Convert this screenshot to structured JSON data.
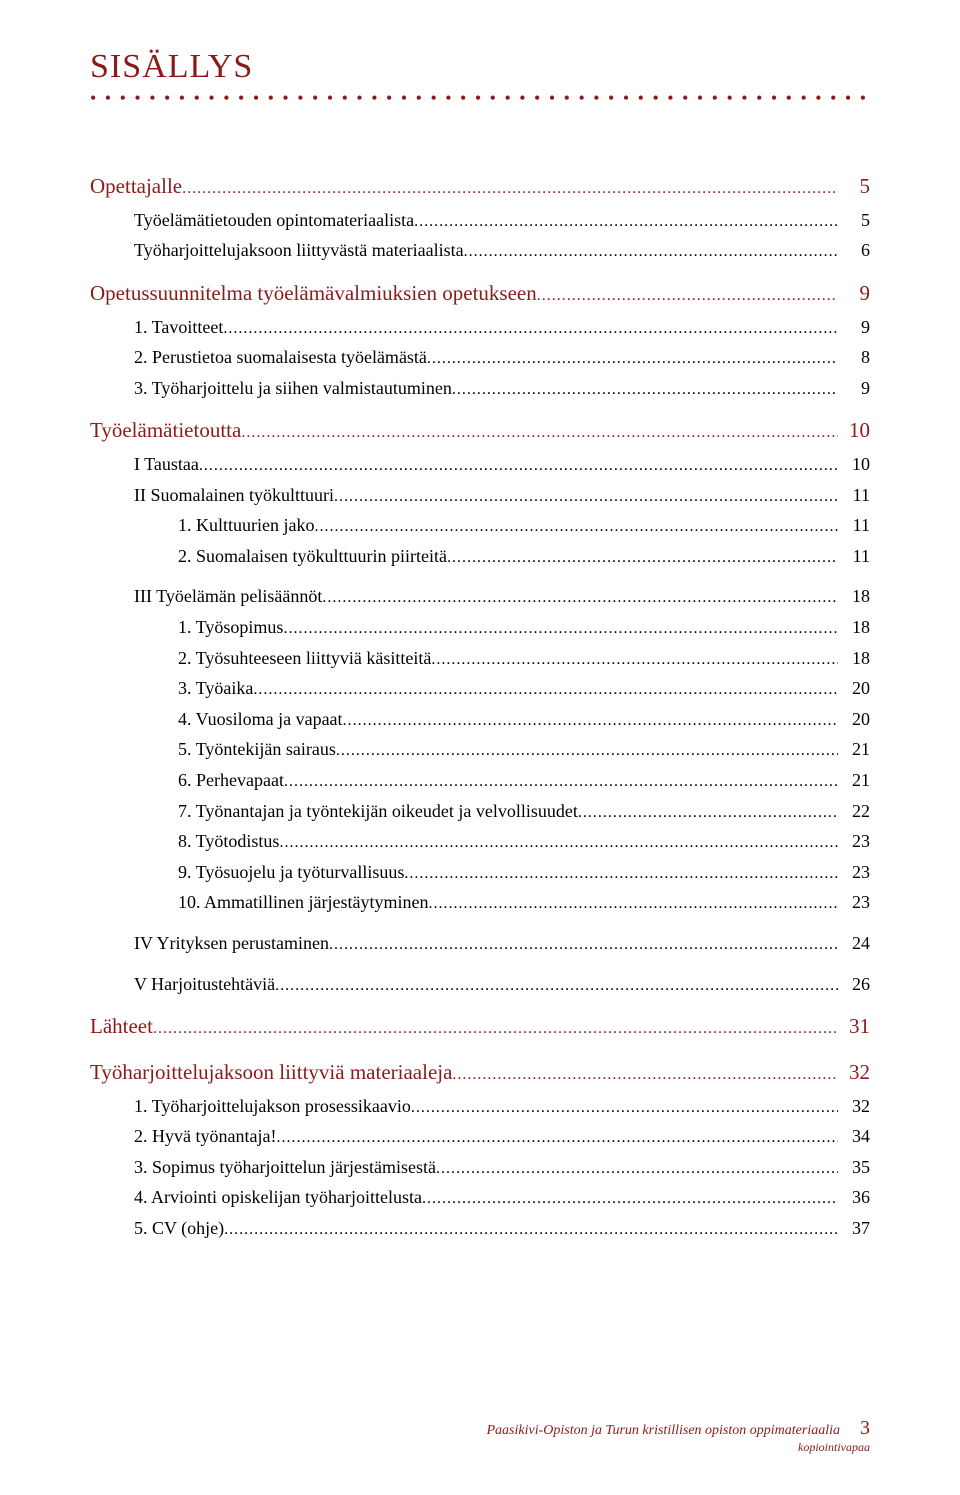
{
  "title": "SISÄLLYS",
  "colors": {
    "accent": "#8b1a1a",
    "text": "#000000",
    "bg": "#ffffff"
  },
  "toc": [
    {
      "level": 1,
      "indent": 0,
      "label": "Opettajalle",
      "page": "5",
      "before": "md"
    },
    {
      "level": 2,
      "indent": 1,
      "label": "Työelämätietouden opintomateriaalista",
      "page": "5"
    },
    {
      "level": 2,
      "indent": 1,
      "label": "Työharjoittelujaksoon liittyvästä materiaalista",
      "page": "6"
    },
    {
      "level": 1,
      "indent": 0,
      "label": "Opetussuunnitelma työelämävalmiuksien opetukseen",
      "page": "9",
      "before": "sm"
    },
    {
      "level": 2,
      "indent": 1,
      "label": "1. Tavoitteet",
      "page": "9"
    },
    {
      "level": 2,
      "indent": 1,
      "label": "2. Perustietoa suomalaisesta työelämästä",
      "page": "8"
    },
    {
      "level": 2,
      "indent": 1,
      "label": "3. Työharjoittelu ja siihen valmistautuminen",
      "page": "9"
    },
    {
      "level": 1,
      "indent": 0,
      "label": "Työelämätietoutta",
      "page": "10",
      "before": "sm"
    },
    {
      "level": 2,
      "indent": 1,
      "label": "I Taustaa",
      "page": "10"
    },
    {
      "level": 2,
      "indent": 1,
      "label": "II Suomalainen työkulttuuri",
      "page": "11"
    },
    {
      "level": 2,
      "indent": 2,
      "label": "1. Kulttuurien jako",
      "page": "11"
    },
    {
      "level": 2,
      "indent": 2,
      "label": "2. Suomalaisen työkulttuurin piirteitä",
      "page": "11"
    },
    {
      "level": 2,
      "indent": 1,
      "label": "III Työelämän pelisäännöt",
      "page": "18",
      "before": "sm"
    },
    {
      "level": 2,
      "indent": 2,
      "label": "1. Työsopimus",
      "page": "18"
    },
    {
      "level": 2,
      "indent": 2,
      "label": "2. Työsuhteeseen liittyviä käsitteitä",
      "page": "18"
    },
    {
      "level": 2,
      "indent": 2,
      "label": "3. Työaika",
      "page": "20"
    },
    {
      "level": 2,
      "indent": 2,
      "label": "4. Vuosiloma ja vapaat",
      "page": "20"
    },
    {
      "level": 2,
      "indent": 2,
      "label": "5. Työntekijän sairaus",
      "page": "21"
    },
    {
      "level": 2,
      "indent": 2,
      "label": "6. Perhevapaat",
      "page": "21"
    },
    {
      "level": 2,
      "indent": 2,
      "label": "7. Työnantajan ja työntekijän oikeudet ja velvollisuudet",
      "page": "22"
    },
    {
      "level": 2,
      "indent": 2,
      "label": "8. Työtodistus",
      "page": "23"
    },
    {
      "level": 2,
      "indent": 2,
      "label": "9. Työsuojelu ja työturvallisuus",
      "page": "23"
    },
    {
      "level": 2,
      "indent": 2,
      "label": "10. Ammatillinen järjestäytyminen",
      "page": "23"
    },
    {
      "level": 2,
      "indent": 1,
      "label": "IV Yrityksen perustaminen",
      "page": "24",
      "before": "sm"
    },
    {
      "level": 2,
      "indent": 1,
      "label": "V Harjoitustehtäviä",
      "page": "26",
      "before": "sm"
    },
    {
      "level": 1,
      "indent": 0,
      "label": "Lähteet",
      "page": "31",
      "before": "sm"
    },
    {
      "level": 1,
      "indent": 0,
      "label": "Työharjoittelujaksoon liittyviä materiaaleja",
      "page": "32",
      "before": "sm"
    },
    {
      "level": 2,
      "indent": 1,
      "label": "1. Työharjoittelujakson prosessikaavio",
      "page": "32"
    },
    {
      "level": 2,
      "indent": 1,
      "label": "2. Hyvä työnantajа!",
      "page": "34"
    },
    {
      "level": 2,
      "indent": 1,
      "label": "3. Sopimus työharjoittelun järjestämisestä",
      "page": "35"
    },
    {
      "level": 2,
      "indent": 1,
      "label": "4. Arviointi opiskelijan työharjoittelusta",
      "page": "36"
    },
    {
      "level": 2,
      "indent": 1,
      "label": "5. CV (ohje)",
      "page": "37"
    }
  ],
  "footer": {
    "line1": "Paasikivi-Opiston ja Turun kristillisen opiston oppimateriaalia",
    "line2": "kopiointivapaa",
    "pageNumber": "3"
  }
}
